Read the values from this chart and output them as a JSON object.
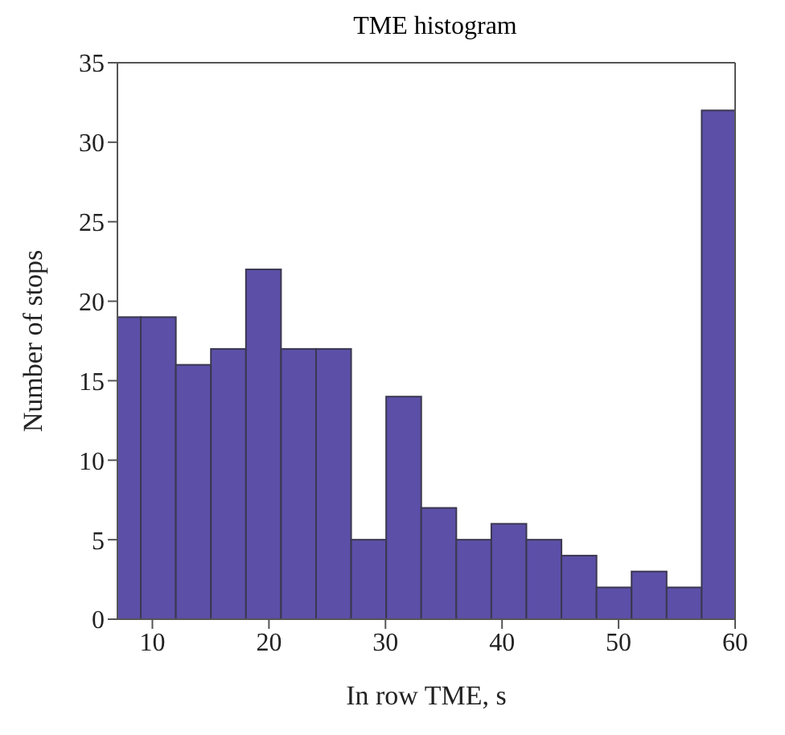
{
  "chart_data": {
    "type": "histogram",
    "title": "TME histogram",
    "xlabel": "In row TME, s",
    "ylabel": "Number of stops",
    "bins": [
      7,
      9,
      12,
      15,
      18,
      21,
      24,
      27,
      30,
      33,
      36,
      39,
      42,
      45,
      48,
      51,
      54,
      57,
      60
    ],
    "values": [
      19,
      19,
      16,
      17,
      22,
      17,
      17,
      5,
      14,
      7,
      5,
      6,
      5,
      4,
      2,
      3,
      2,
      32
    ],
    "color": "#5b4fa8",
    "xlim": [
      7,
      60
    ],
    "xticks": [
      10,
      20,
      30,
      40,
      50,
      60
    ],
    "ylim": [
      0,
      35
    ],
    "yticks": [
      0,
      5,
      10,
      15,
      20,
      25,
      30,
      35
    ],
    "grid": false
  }
}
